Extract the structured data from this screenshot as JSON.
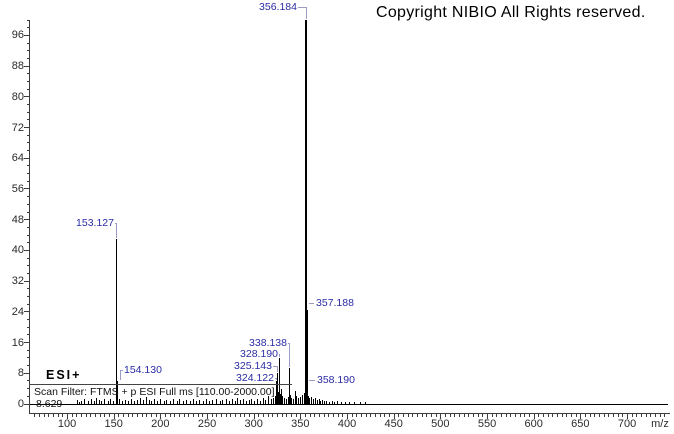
{
  "header": {
    "copyright": "Copyright NIBIO All Rights reserved."
  },
  "info_box": {
    "ionization_mode": "ESI+",
    "scan_filter": "Scan Filter: FTMS + p ESI Full ms [110.00-2000.00]",
    "retention_time": "8.629"
  },
  "colors": {
    "background": "#ffffff",
    "peak": "#000000",
    "peak_label": "#2b2ba5",
    "leader_line": "#9a9cc4",
    "axis": "#3c3c3c",
    "tick_label": "#2a2a2a",
    "copyright_text": "#000000"
  },
  "chart_data": {
    "type": "bar",
    "subtype": "mass-spectrum",
    "title": "",
    "xlabel": "m/z",
    "ylabel": "",
    "xlim": [
      60,
      744
    ],
    "ylim": [
      0,
      100
    ],
    "grid": false,
    "x_major_ticks": [
      100,
      150,
      200,
      250,
      300,
      350,
      400,
      450,
      500,
      550,
      600,
      650,
      700
    ],
    "x_minor_step": 5,
    "y_tick_labels": [
      0,
      8,
      16,
      24,
      32,
      40,
      48,
      56,
      64,
      72,
      80,
      88,
      96
    ],
    "y_major_step": 8,
    "y_minor_step": 2,
    "labeled_peaks": [
      {
        "mz": 153.127,
        "intensity": 43,
        "label": "153.127"
      },
      {
        "mz": 154.13,
        "intensity": 6,
        "label": "154.130"
      },
      {
        "mz": 324.122,
        "intensity": 6,
        "label": "324.122"
      },
      {
        "mz": 325.143,
        "intensity": 8,
        "label": "325.143"
      },
      {
        "mz": 328.19,
        "intensity": 12,
        "label": "328.190"
      },
      {
        "mz": 338.138,
        "intensity": 9.5,
        "label": "338.138"
      },
      {
        "mz": 356.184,
        "intensity": 100,
        "label": "356.184"
      },
      {
        "mz": 357.188,
        "intensity": 24.5,
        "label": "357.188"
      },
      {
        "mz": 358.19,
        "intensity": 5.5,
        "label": "358.190"
      }
    ],
    "noise_peaks": [
      [
        111,
        1.0
      ],
      [
        113.5,
        0.6
      ],
      [
        116,
        0.8
      ],
      [
        119,
        1.3
      ],
      [
        123,
        0.9
      ],
      [
        126,
        1.2
      ],
      [
        129,
        0.7
      ],
      [
        132,
        1.5
      ],
      [
        135,
        1.0
      ],
      [
        137,
        0.7
      ],
      [
        140,
        1.2
      ],
      [
        144,
        0.8
      ],
      [
        147,
        1.4
      ],
      [
        150,
        0.9
      ],
      [
        156,
        1.2
      ],
      [
        159,
        0.8
      ],
      [
        163,
        1.1
      ],
      [
        166,
        0.7
      ],
      [
        169,
        1.3
      ],
      [
        172,
        0.8
      ],
      [
        175,
        1.0
      ],
      [
        179,
        1.5
      ],
      [
        182,
        1.0
      ],
      [
        185,
        1.8
      ],
      [
        188,
        1.1
      ],
      [
        191,
        0.8
      ],
      [
        194,
        1.2
      ],
      [
        197,
        0.9
      ],
      [
        200,
        1.4
      ],
      [
        204,
        0.8
      ],
      [
        207,
        1.1
      ],
      [
        211,
        0.7
      ],
      [
        214,
        1.2
      ],
      [
        218,
        0.8
      ],
      [
        221,
        1.3
      ],
      [
        225,
        0.9
      ],
      [
        228,
        1.1
      ],
      [
        232,
        0.7
      ],
      [
        235,
        1.3
      ],
      [
        239,
        0.8
      ],
      [
        242,
        1.1
      ],
      [
        246,
        0.7
      ],
      [
        249,
        1.2
      ],
      [
        253,
        0.8
      ],
      [
        256,
        1.0
      ],
      [
        260,
        1.3
      ],
      [
        264,
        0.8
      ],
      [
        267,
        1.1
      ],
      [
        271,
        1.4
      ],
      [
        274,
        0.9
      ],
      [
        277,
        1.2
      ],
      [
        280,
        0.8
      ],
      [
        283,
        1.5
      ],
      [
        286,
        1.0
      ],
      [
        289,
        1.2
      ],
      [
        292,
        0.8
      ],
      [
        295,
        1.1
      ],
      [
        298,
        1.4
      ],
      [
        301,
        0.9
      ],
      [
        304,
        1.2
      ],
      [
        307,
        0.8
      ],
      [
        310,
        1.5
      ],
      [
        313,
        1.0
      ],
      [
        316,
        2.0
      ],
      [
        319,
        1.2
      ],
      [
        321,
        1.6
      ],
      [
        323,
        2.2
      ],
      [
        326.2,
        3.2
      ],
      [
        327.1,
        2.0
      ],
      [
        329.2,
        2.6
      ],
      [
        330.2,
        3.8
      ],
      [
        331.2,
        2.0
      ],
      [
        333,
        1.5
      ],
      [
        335,
        1.2
      ],
      [
        337,
        1.8
      ],
      [
        339.1,
        2.4
      ],
      [
        341,
        1.6
      ],
      [
        343,
        1.2
      ],
      [
        345.2,
        3.4
      ],
      [
        346.2,
        2.2
      ],
      [
        348,
        1.5
      ],
      [
        350,
        1.8
      ],
      [
        352,
        2.4
      ],
      [
        354,
        2.8
      ],
      [
        355,
        2.0
      ],
      [
        359.2,
        2.2
      ],
      [
        360.2,
        1.6
      ],
      [
        362,
        1.8
      ],
      [
        364,
        1.2
      ],
      [
        366,
        1.5
      ],
      [
        368,
        1.0
      ],
      [
        370,
        1.2
      ],
      [
        372,
        0.8
      ],
      [
        374,
        1.0
      ],
      [
        376,
        0.7
      ],
      [
        378,
        0.9
      ],
      [
        381,
        0.6
      ],
      [
        384,
        0.8
      ],
      [
        387,
        0.5
      ],
      [
        390,
        0.7
      ],
      [
        394,
        0.5
      ],
      [
        398,
        0.6
      ],
      [
        403,
        0.4
      ],
      [
        408,
        0.5
      ],
      [
        414,
        0.4
      ],
      [
        420,
        0.5
      ]
    ]
  }
}
